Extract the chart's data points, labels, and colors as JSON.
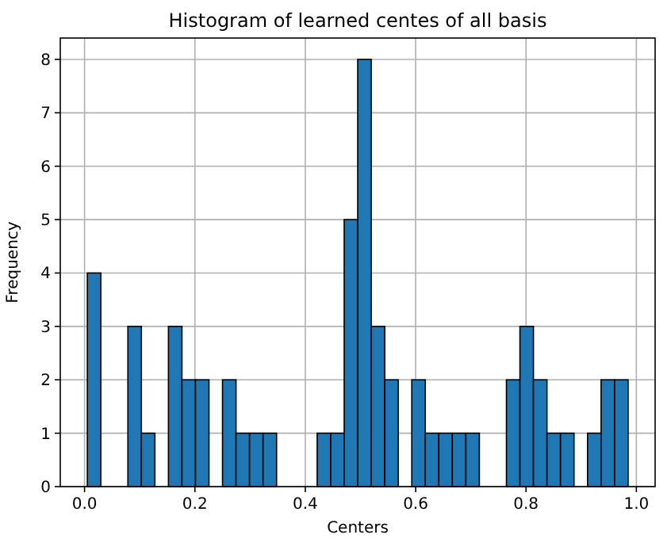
{
  "chart_data": {
    "type": "histogram",
    "title": "Histogram of learned centes of all basis",
    "xlabel": "Centers",
    "ylabel": "Frequency",
    "bins": [
      0.005,
      0.0295,
      0.054,
      0.0785,
      0.103,
      0.1275,
      0.152,
      0.1765,
      0.201,
      0.2255,
      0.25,
      0.2745,
      0.299,
      0.3235,
      0.348,
      0.3725,
      0.397,
      0.4215,
      0.446,
      0.4705,
      0.495,
      0.5195,
      0.544,
      0.5685,
      0.593,
      0.6175,
      0.642,
      0.6665,
      0.691,
      0.7155,
      0.74,
      0.7645,
      0.789,
      0.8135,
      0.838,
      0.8625,
      0.887,
      0.9115,
      0.936,
      0.9605,
      0.985
    ],
    "values": [
      4,
      0,
      0,
      3,
      1,
      0,
      3,
      2,
      2,
      0,
      2,
      1,
      1,
      1,
      0,
      0,
      0,
      1,
      1,
      5,
      8,
      3,
      2,
      0,
      2,
      1,
      1,
      1,
      1,
      0,
      0,
      2,
      3,
      2,
      1,
      1,
      0,
      1,
      2,
      2
    ],
    "color": "#1f77b4",
    "xlim": [
      -0.044,
      1.034
    ],
    "xticks": [
      {
        "value": 0,
        "label": "0.0"
      },
      0.2,
      0.4,
      0.6,
      0.8,
      {
        "value": 1,
        "label": "1.0"
      }
    ],
    "ylim": [
      0,
      8.4
    ],
    "yticks": [
      0,
      1,
      2,
      3,
      4,
      5,
      6,
      7,
      8
    ],
    "grid": true
  }
}
